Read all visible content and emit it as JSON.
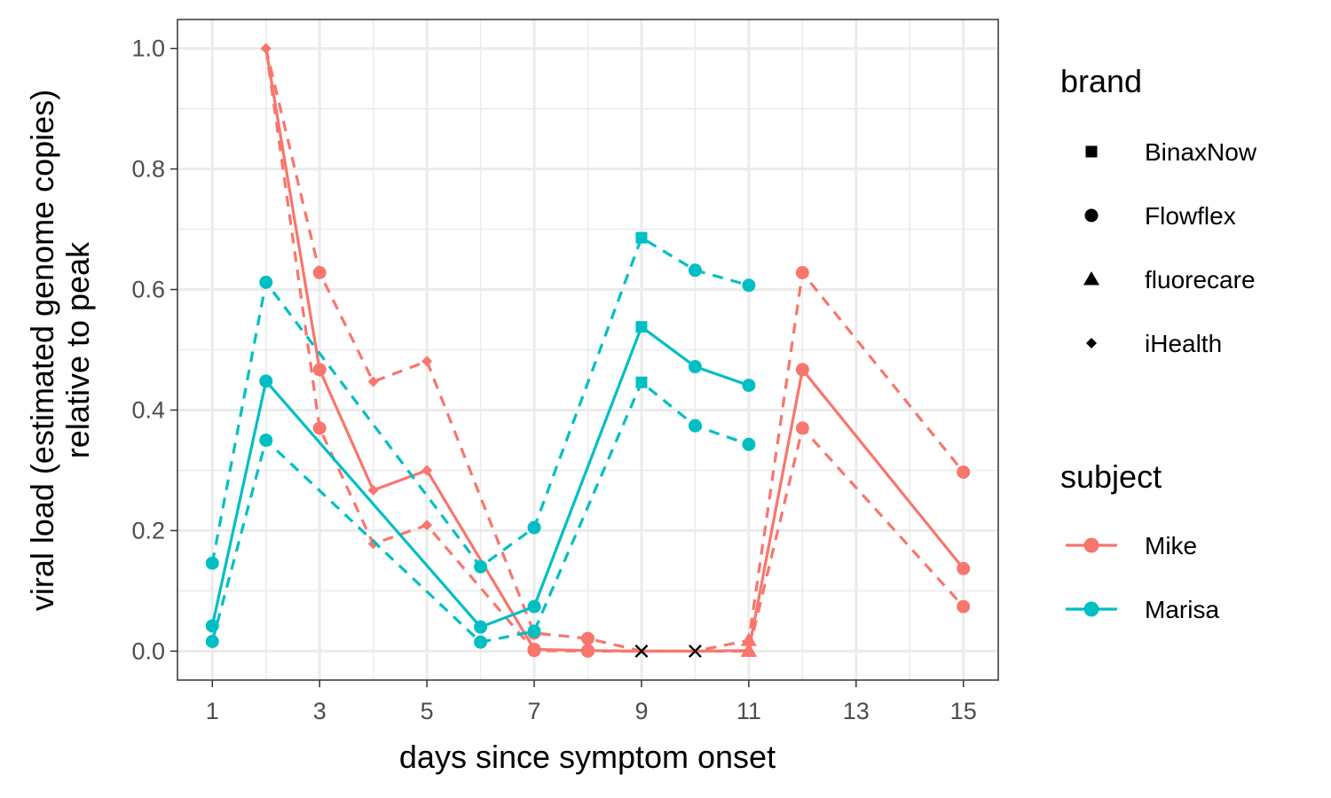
{
  "chart_data": {
    "type": "line",
    "xlabel": "days since symptom onset",
    "ylabel_lines": [
      "viral load (estimated genome copies)",
      "relative to peak"
    ],
    "xlim": [
      0.35,
      15.65
    ],
    "ylim": [
      -0.048,
      1.048
    ],
    "x_ticks": [
      1,
      3,
      5,
      7,
      9,
      11,
      13,
      15
    ],
    "x_tick_labels": [
      "1",
      "3",
      "5",
      "7",
      "9",
      "11",
      "13",
      "15"
    ],
    "y_ticks": [
      0.0,
      0.2,
      0.4,
      0.6,
      0.8,
      1.0
    ],
    "y_tick_labels": [
      "0.0",
      "0.2",
      "0.4",
      "0.6",
      "0.8",
      "1.0"
    ],
    "grid": true,
    "legend_position": "right",
    "colors": {
      "Mike": "#F8766D",
      "Marisa": "#00BFC4"
    },
    "legend": {
      "brand": {
        "title": "brand",
        "items": [
          {
            "label": "BinaxNow",
            "shape": "square"
          },
          {
            "label": "Flowflex",
            "shape": "circle"
          },
          {
            "label": "fluorecare",
            "shape": "triangle"
          },
          {
            "label": "iHealth",
            "shape": "diamond"
          }
        ]
      },
      "subject": {
        "title": "subject",
        "items": [
          {
            "label": "Mike",
            "color": "#F8766D"
          },
          {
            "label": "Marisa",
            "color": "#00BFC4"
          }
        ]
      }
    },
    "series": [
      {
        "subject": "Mike",
        "style": "solid",
        "points": [
          {
            "x": 2,
            "y": 1.0,
            "shape": "diamond"
          },
          {
            "x": 3,
            "y": 0.467,
            "shape": "circle"
          },
          {
            "x": 4,
            "y": 0.267,
            "shape": "diamond"
          },
          {
            "x": 5,
            "y": 0.3,
            "shape": "diamond"
          },
          {
            "x": 7,
            "y": 0.003,
            "shape": "circle"
          },
          {
            "x": 8,
            "y": 0.001,
            "shape": "circle"
          },
          {
            "x": 9,
            "y": 0.0,
            "shape": "x"
          },
          {
            "x": 10,
            "y": 0.0,
            "shape": "x"
          },
          {
            "x": 11,
            "y": 0.001,
            "shape": "triangle"
          },
          {
            "x": 12,
            "y": 0.467,
            "shape": "circle"
          },
          {
            "x": 15,
            "y": 0.137,
            "shape": "circle"
          }
        ]
      },
      {
        "subject": "Mike",
        "style": "dashed",
        "points": [
          {
            "x": 2,
            "y": 1.0,
            "shape": "diamond"
          },
          {
            "x": 3,
            "y": 0.628,
            "shape": "circle"
          },
          {
            "x": 4,
            "y": 0.447,
            "shape": "diamond"
          },
          {
            "x": 5,
            "y": 0.481,
            "shape": "diamond"
          },
          {
            "x": 7,
            "y": 0.03,
            "shape": "circle"
          },
          {
            "x": 8,
            "y": 0.021,
            "shape": "circle"
          },
          {
            "x": 9,
            "y": 0.0,
            "shape": "x"
          },
          {
            "x": 10,
            "y": 0.0,
            "shape": "x"
          },
          {
            "x": 11,
            "y": 0.018,
            "shape": "triangle"
          },
          {
            "x": 12,
            "y": 0.628,
            "shape": "circle"
          },
          {
            "x": 15,
            "y": 0.297,
            "shape": "circle"
          }
        ]
      },
      {
        "subject": "Mike",
        "style": "dashed",
        "points": [
          {
            "x": 2,
            "y": 1.0,
            "shape": "diamond"
          },
          {
            "x": 3,
            "y": 0.37,
            "shape": "circle"
          },
          {
            "x": 4,
            "y": 0.178,
            "shape": "diamond"
          },
          {
            "x": 5,
            "y": 0.209,
            "shape": "diamond"
          },
          {
            "x": 7,
            "y": 0.001,
            "shape": "circle"
          },
          {
            "x": 8,
            "y": 0.0,
            "shape": "circle"
          },
          {
            "x": 9,
            "y": 0.0,
            "shape": "x"
          },
          {
            "x": 10,
            "y": 0.0,
            "shape": "x"
          },
          {
            "x": 11,
            "y": 0.0,
            "shape": "triangle"
          },
          {
            "x": 12,
            "y": 0.37,
            "shape": "circle"
          },
          {
            "x": 15,
            "y": 0.074,
            "shape": "circle"
          }
        ]
      },
      {
        "subject": "Marisa",
        "style": "solid",
        "points": [
          {
            "x": 1,
            "y": 0.042,
            "shape": "circle"
          },
          {
            "x": 2,
            "y": 0.448,
            "shape": "circle"
          },
          {
            "x": 6,
            "y": 0.04,
            "shape": "circle"
          },
          {
            "x": 7,
            "y": 0.074,
            "shape": "circle"
          },
          {
            "x": 9,
            "y": 0.538,
            "shape": "square"
          },
          {
            "x": 10,
            "y": 0.472,
            "shape": "circle"
          },
          {
            "x": 11,
            "y": 0.441,
            "shape": "circle"
          }
        ]
      },
      {
        "subject": "Marisa",
        "style": "dashed",
        "points": [
          {
            "x": 1,
            "y": 0.146,
            "shape": "circle"
          },
          {
            "x": 2,
            "y": 0.612,
            "shape": "circle"
          },
          {
            "x": 6,
            "y": 0.14,
            "shape": "circle"
          },
          {
            "x": 7,
            "y": 0.205,
            "shape": "circle"
          },
          {
            "x": 9,
            "y": 0.686,
            "shape": "square"
          },
          {
            "x": 10,
            "y": 0.632,
            "shape": "circle"
          },
          {
            "x": 11,
            "y": 0.607,
            "shape": "circle"
          }
        ]
      },
      {
        "subject": "Marisa",
        "style": "dashed",
        "points": [
          {
            "x": 1,
            "y": 0.016,
            "shape": "circle"
          },
          {
            "x": 2,
            "y": 0.35,
            "shape": "circle"
          },
          {
            "x": 6,
            "y": 0.015,
            "shape": "circle"
          },
          {
            "x": 7,
            "y": 0.033,
            "shape": "circle"
          },
          {
            "x": 9,
            "y": 0.446,
            "shape": "square"
          },
          {
            "x": 10,
            "y": 0.374,
            "shape": "circle"
          },
          {
            "x": 11,
            "y": 0.343,
            "shape": "circle"
          }
        ]
      }
    ]
  }
}
